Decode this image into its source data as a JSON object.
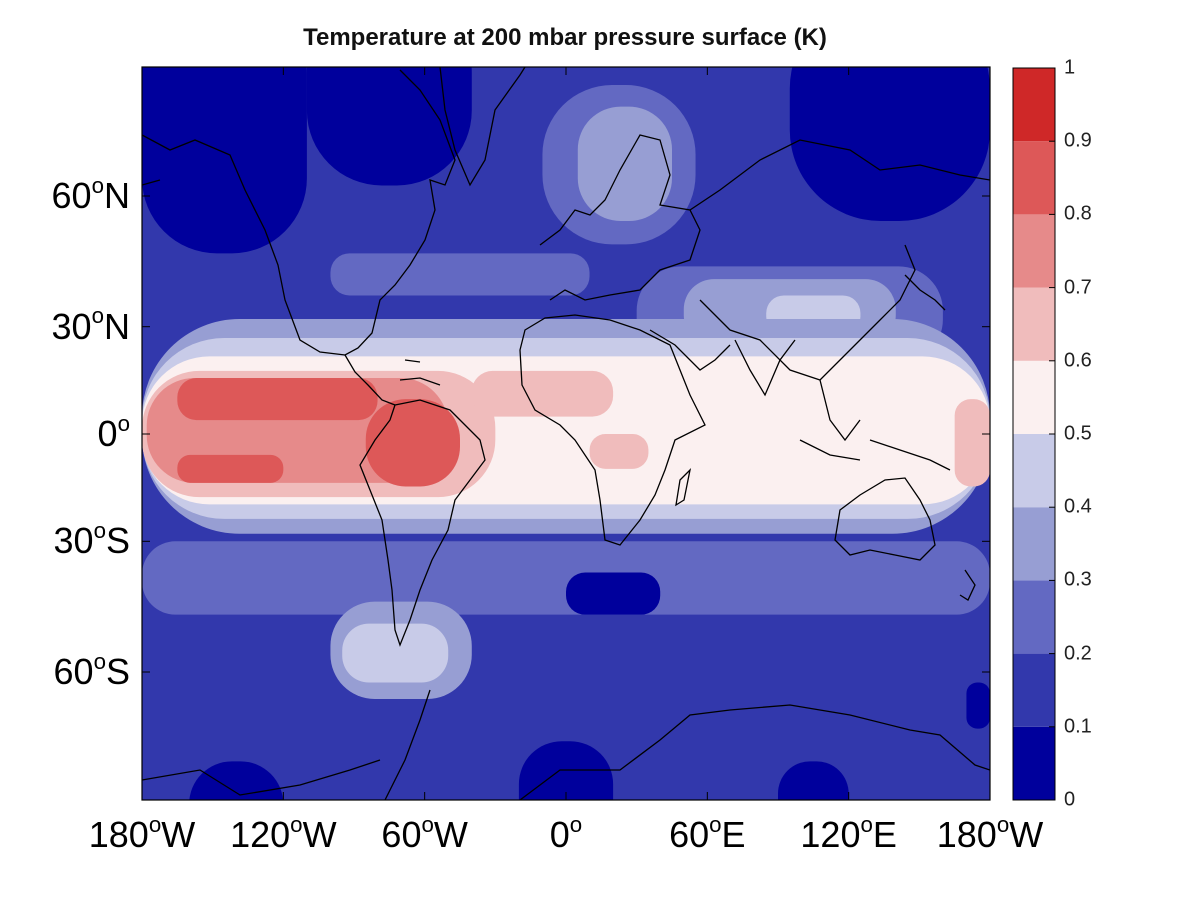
{
  "title": "Temperature at 200 mbar pressure surface (K)",
  "latitude_ticks": [
    {
      "lat": 60,
      "num": "60",
      "sup": "o",
      "suffix": "N"
    },
    {
      "lat": 30,
      "num": "30",
      "sup": "o",
      "suffix": "N"
    },
    {
      "lat": 0,
      "num": "0",
      "sup": "o",
      "suffix": ""
    },
    {
      "lat": -30,
      "num": "30",
      "sup": "o",
      "suffix": "S"
    },
    {
      "lat": -60,
      "num": "60",
      "sup": "o",
      "suffix": "S"
    }
  ],
  "longitude_ticks": [
    {
      "lon": -180,
      "num": "180",
      "sup": "o",
      "suffix": "W"
    },
    {
      "lon": -120,
      "num": "120",
      "sup": "o",
      "suffix": "W"
    },
    {
      "lon": -60,
      "num": "60",
      "sup": "o",
      "suffix": "W"
    },
    {
      "lon": 0,
      "num": "0",
      "sup": "o",
      "suffix": ""
    },
    {
      "lon": 60,
      "num": "60",
      "sup": "o",
      "suffix": "E"
    },
    {
      "lon": 120,
      "num": "120",
      "sup": "o",
      "suffix": "E"
    },
    {
      "lon": 180,
      "num": "180",
      "sup": "o",
      "suffix": "W"
    }
  ],
  "colorbar": {
    "min": 0,
    "max": 1,
    "labels": [
      "0",
      "0.1",
      "0.2",
      "0.3",
      "0.4",
      "0.5",
      "0.6",
      "0.7",
      "0.8",
      "0.9",
      "1"
    ],
    "bins": [
      "#00009c",
      "#3238ac",
      "#6369c2",
      "#979ed3",
      "#c8cbe8",
      "#fbf0f0",
      "#f0bcbc",
      "#e68a8a",
      "#dd5858",
      "#cf2828"
    ]
  },
  "background_level": 1,
  "field_regions": [
    {
      "name": "north-pole-cold-west",
      "level": 0,
      "lon": [
        -180,
        -110
      ],
      "lat": [
        48,
        88
      ]
    },
    {
      "name": "north-pole-cold-center",
      "level": 0,
      "lon": [
        -110,
        -40
      ],
      "lat": [
        62,
        88
      ]
    },
    {
      "name": "north-pole-cold-east",
      "level": 0,
      "lon": [
        95,
        180
      ],
      "lat": [
        55,
        88
      ]
    },
    {
      "name": "europe-warm-outer",
      "level": 2,
      "lon": [
        -10,
        55
      ],
      "lat": [
        50,
        78
      ]
    },
    {
      "name": "europe-warm-inner",
      "level": 3,
      "lon": [
        5,
        45
      ],
      "lat": [
        55,
        75
      ]
    },
    {
      "name": "atlantic-midlat",
      "level": 2,
      "lon": [
        -100,
        10
      ],
      "lat": [
        38,
        48
      ]
    },
    {
      "name": "asia-jet",
      "level": 2,
      "lon": [
        30,
        160
      ],
      "lat": [
        20,
        45
      ]
    },
    {
      "name": "asia-warm",
      "level": 3,
      "lon": [
        50,
        140
      ],
      "lat": [
        25,
        42
      ]
    },
    {
      "name": "tibet-core",
      "level": 4,
      "lon": [
        85,
        125
      ],
      "lat": [
        28,
        38
      ]
    },
    {
      "name": "tropics-band-outer",
      "level": 3,
      "lon": [
        -180,
        180
      ],
      "lat": [
        -28,
        32
      ]
    },
    {
      "name": "tropics-band-mid",
      "level": 4,
      "lon": [
        -180,
        180
      ],
      "lat": [
        -24,
        27
      ]
    },
    {
      "name": "tropics-band-inner",
      "level": 5,
      "lon": [
        -180,
        180
      ],
      "lat": [
        -20,
        22
      ]
    },
    {
      "name": "pacific-warm",
      "level": 6,
      "lon": [
        -180,
        -30
      ],
      "lat": [
        -18,
        18
      ]
    },
    {
      "name": "pacific-warmer",
      "level": 7,
      "lon": [
        -178,
        -50
      ],
      "lat": [
        -14,
        16
      ]
    },
    {
      "name": "pacific-hot-north",
      "level": 8,
      "lon": [
        -165,
        -80
      ],
      "lat": [
        4,
        16
      ]
    },
    {
      "name": "pacific-hot-south",
      "level": 8,
      "lon": [
        -165,
        -120
      ],
      "lat": [
        -14,
        -6
      ]
    },
    {
      "name": "amazon-hot",
      "level": 8,
      "lon": [
        -85,
        -45
      ],
      "lat": [
        -15,
        10
      ]
    },
    {
      "name": "atlantic-warm",
      "level": 6,
      "lon": [
        -40,
        20
      ],
      "lat": [
        5,
        18
      ]
    },
    {
      "name": "africa-warm",
      "level": 6,
      "lon": [
        10,
        35
      ],
      "lat": [
        -10,
        0
      ]
    },
    {
      "name": "dateline-warm",
      "level": 6,
      "lon": [
        165,
        180
      ],
      "lat": [
        -15,
        10
      ]
    },
    {
      "name": "south-midlat-a",
      "level": 2,
      "lon": [
        -180,
        180
      ],
      "lat": [
        -48,
        -30
      ]
    },
    {
      "name": "south-andes-warm",
      "level": 3,
      "lon": [
        -100,
        -40
      ],
      "lat": [
        -65,
        -45
      ]
    },
    {
      "name": "south-andes-core",
      "level": 4,
      "lon": [
        -95,
        -50
      ],
      "lat": [
        -62,
        -50
      ]
    },
    {
      "name": "indian-ocean-cold",
      "level": 0,
      "lon": [
        0,
        40
      ],
      "lat": [
        -48,
        -38
      ]
    },
    {
      "name": "antarctic-cold-west",
      "level": 0,
      "lon": [
        -160,
        -120
      ],
      "lat": [
        -88,
        -75
      ]
    },
    {
      "name": "antarctic-cold-center",
      "level": 0,
      "lon": [
        -20,
        20
      ],
      "lat": [
        -88,
        -72
      ]
    },
    {
      "name": "antarctic-cold-east",
      "level": 0,
      "lon": [
        90,
        120
      ],
      "lat": [
        -88,
        -75
      ]
    },
    {
      "name": "pacific-nz-cold",
      "level": 0,
      "lon": [
        170,
        180
      ],
      "lat": [
        -70,
        -62
      ]
    }
  ]
}
